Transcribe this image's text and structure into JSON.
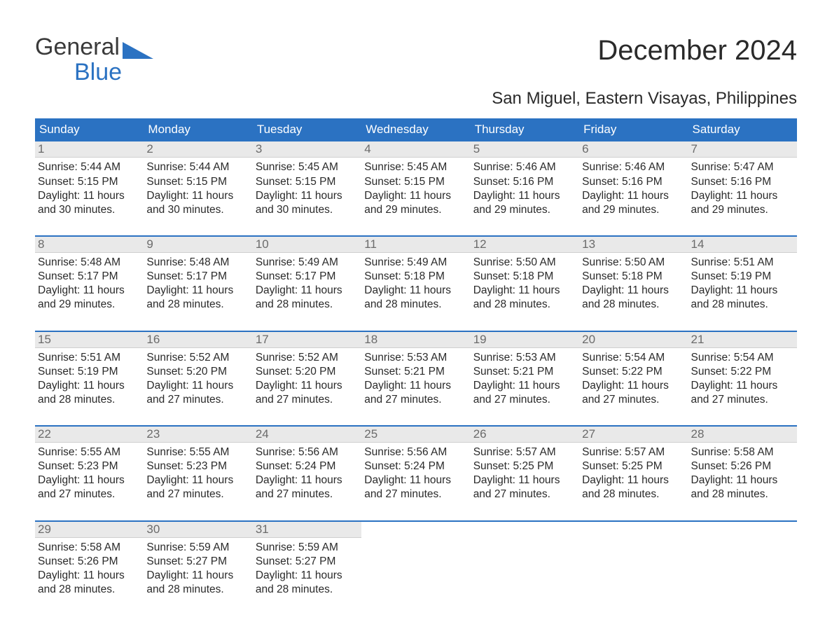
{
  "logo": {
    "line1": "General",
    "line2": "Blue",
    "color_gray": "#3a3a3a",
    "color_blue": "#2b72c2",
    "triangle_color": "#2b72c2"
  },
  "title": "December 2024",
  "subtitle": "San Miguel, Eastern Visayas, Philippines",
  "colors": {
    "header_bg": "#2b72c2",
    "header_text": "#ffffff",
    "daynum_bg": "#e9e9e9",
    "daynum_text": "#6b6b6b",
    "body_text": "#2a2a2a",
    "week_border": "#2b72c2",
    "page_bg": "#ffffff"
  },
  "font": {
    "family": "Arial",
    "title_size_pt": 30,
    "subtitle_size_pt": 18,
    "dow_size_pt": 13,
    "daynum_size_pt": 13,
    "body_size_pt": 11.5
  },
  "days_of_week": [
    "Sunday",
    "Monday",
    "Tuesday",
    "Wednesday",
    "Thursday",
    "Friday",
    "Saturday"
  ],
  "weeks": [
    [
      {
        "n": "1",
        "sr": "5:44 AM",
        "ss": "5:15 PM",
        "dl": "11 hours and 30 minutes."
      },
      {
        "n": "2",
        "sr": "5:44 AM",
        "ss": "5:15 PM",
        "dl": "11 hours and 30 minutes."
      },
      {
        "n": "3",
        "sr": "5:45 AM",
        "ss": "5:15 PM",
        "dl": "11 hours and 30 minutes."
      },
      {
        "n": "4",
        "sr": "5:45 AM",
        "ss": "5:15 PM",
        "dl": "11 hours and 29 minutes."
      },
      {
        "n": "5",
        "sr": "5:46 AM",
        "ss": "5:16 PM",
        "dl": "11 hours and 29 minutes."
      },
      {
        "n": "6",
        "sr": "5:46 AM",
        "ss": "5:16 PM",
        "dl": "11 hours and 29 minutes."
      },
      {
        "n": "7",
        "sr": "5:47 AM",
        "ss": "5:16 PM",
        "dl": "11 hours and 29 minutes."
      }
    ],
    [
      {
        "n": "8",
        "sr": "5:48 AM",
        "ss": "5:17 PM",
        "dl": "11 hours and 29 minutes."
      },
      {
        "n": "9",
        "sr": "5:48 AM",
        "ss": "5:17 PM",
        "dl": "11 hours and 28 minutes."
      },
      {
        "n": "10",
        "sr": "5:49 AM",
        "ss": "5:17 PM",
        "dl": "11 hours and 28 minutes."
      },
      {
        "n": "11",
        "sr": "5:49 AM",
        "ss": "5:18 PM",
        "dl": "11 hours and 28 minutes."
      },
      {
        "n": "12",
        "sr": "5:50 AM",
        "ss": "5:18 PM",
        "dl": "11 hours and 28 minutes."
      },
      {
        "n": "13",
        "sr": "5:50 AM",
        "ss": "5:18 PM",
        "dl": "11 hours and 28 minutes."
      },
      {
        "n": "14",
        "sr": "5:51 AM",
        "ss": "5:19 PM",
        "dl": "11 hours and 28 minutes."
      }
    ],
    [
      {
        "n": "15",
        "sr": "5:51 AM",
        "ss": "5:19 PM",
        "dl": "11 hours and 28 minutes."
      },
      {
        "n": "16",
        "sr": "5:52 AM",
        "ss": "5:20 PM",
        "dl": "11 hours and 27 minutes."
      },
      {
        "n": "17",
        "sr": "5:52 AM",
        "ss": "5:20 PM",
        "dl": "11 hours and 27 minutes."
      },
      {
        "n": "18",
        "sr": "5:53 AM",
        "ss": "5:21 PM",
        "dl": "11 hours and 27 minutes."
      },
      {
        "n": "19",
        "sr": "5:53 AM",
        "ss": "5:21 PM",
        "dl": "11 hours and 27 minutes."
      },
      {
        "n": "20",
        "sr": "5:54 AM",
        "ss": "5:22 PM",
        "dl": "11 hours and 27 minutes."
      },
      {
        "n": "21",
        "sr": "5:54 AM",
        "ss": "5:22 PM",
        "dl": "11 hours and 27 minutes."
      }
    ],
    [
      {
        "n": "22",
        "sr": "5:55 AM",
        "ss": "5:23 PM",
        "dl": "11 hours and 27 minutes."
      },
      {
        "n": "23",
        "sr": "5:55 AM",
        "ss": "5:23 PM",
        "dl": "11 hours and 27 minutes."
      },
      {
        "n": "24",
        "sr": "5:56 AM",
        "ss": "5:24 PM",
        "dl": "11 hours and 27 minutes."
      },
      {
        "n": "25",
        "sr": "5:56 AM",
        "ss": "5:24 PM",
        "dl": "11 hours and 27 minutes."
      },
      {
        "n": "26",
        "sr": "5:57 AM",
        "ss": "5:25 PM",
        "dl": "11 hours and 27 minutes."
      },
      {
        "n": "27",
        "sr": "5:57 AM",
        "ss": "5:25 PM",
        "dl": "11 hours and 28 minutes."
      },
      {
        "n": "28",
        "sr": "5:58 AM",
        "ss": "5:26 PM",
        "dl": "11 hours and 28 minutes."
      }
    ],
    [
      {
        "n": "29",
        "sr": "5:58 AM",
        "ss": "5:26 PM",
        "dl": "11 hours and 28 minutes."
      },
      {
        "n": "30",
        "sr": "5:59 AM",
        "ss": "5:27 PM",
        "dl": "11 hours and 28 minutes."
      },
      {
        "n": "31",
        "sr": "5:59 AM",
        "ss": "5:27 PM",
        "dl": "11 hours and 28 minutes."
      },
      null,
      null,
      null,
      null
    ]
  ],
  "labels": {
    "sunrise": "Sunrise:",
    "sunset": "Sunset:",
    "daylight": "Daylight:"
  }
}
